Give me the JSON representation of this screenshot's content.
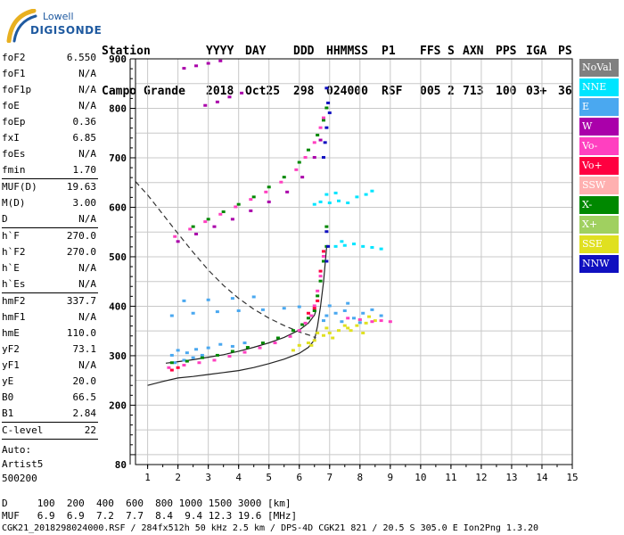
{
  "logo": {
    "line1": "Lowell",
    "line2": "DIGISONDE"
  },
  "header": {
    "col_station": [
      "Station",
      "Campo Grande"
    ],
    "col_yyyy": [
      "YYYY",
      "2018"
    ],
    "col_day": [
      "DAY",
      "Oct25"
    ],
    "col_ddd": [
      "DDD",
      "298"
    ],
    "col_hhmmss": [
      "HHMMSS",
      "024000"
    ],
    "col_p1": [
      "P1",
      "RSF"
    ],
    "col_ffs": [
      "FFS",
      "005"
    ],
    "col_s": [
      "S",
      "2"
    ],
    "col_axn": [
      "AXN",
      "713"
    ],
    "col_pps": [
      "PPS",
      "100"
    ],
    "col_iga": [
      "IGA",
      "03+"
    ],
    "col_ps": [
      "PS",
      "36"
    ]
  },
  "params": {
    "group1": [
      {
        "label": "foF2",
        "value": "6.550"
      },
      {
        "label": "foF1",
        "value": "N/A"
      },
      {
        "label": "foF1p",
        "value": "N/A"
      },
      {
        "label": "foE",
        "value": "N/A"
      },
      {
        "label": "foEp",
        "value": "0.36"
      },
      {
        "label": "fxI",
        "value": "6.85"
      },
      {
        "label": "foEs",
        "value": "N/A"
      },
      {
        "label": "fmin",
        "value": "1.70"
      }
    ],
    "group2": [
      {
        "label": "MUF(D)",
        "value": "19.63"
      },
      {
        "label": "M(D)",
        "value": "3.00"
      },
      {
        "label": "D",
        "value": "N/A"
      }
    ],
    "group3": [
      {
        "label": "h`F",
        "value": "270.0"
      },
      {
        "label": "h`F2",
        "value": "270.0"
      },
      {
        "label": "h`E",
        "value": "N/A"
      },
      {
        "label": "h`Es",
        "value": "N/A"
      }
    ],
    "group4": [
      {
        "label": "hmF2",
        "value": "337.7"
      },
      {
        "label": "hmF1",
        "value": "N/A"
      },
      {
        "label": "hmE",
        "value": "110.0"
      },
      {
        "label": "yF2",
        "value": "73.1"
      },
      {
        "label": "yF1",
        "value": "N/A"
      },
      {
        "label": "yE",
        "value": "20.0"
      },
      {
        "label": "B0",
        "value": "66.5"
      },
      {
        "label": "B1",
        "value": "2.84"
      }
    ],
    "group5": [
      {
        "label": "C-level",
        "value": "22"
      }
    ],
    "auto": [
      "Auto:",
      "Artist5",
      "500200"
    ]
  },
  "legend": [
    {
      "label": "NoVal",
      "color": "#808080"
    },
    {
      "label": "NNE",
      "color": "#00e5ff"
    },
    {
      "label": "E",
      "color": "#4aa8f0"
    },
    {
      "label": "W",
      "color": "#aa00aa"
    },
    {
      "label": "Vo-",
      "color": "#ff40c0"
    },
    {
      "label": "Vo+",
      "color": "#ff0040"
    },
    {
      "label": "SSW",
      "color": "#ffb0b0"
    },
    {
      "label": "X-",
      "color": "#008800"
    },
    {
      "label": "X+",
      "color": "#a0d060"
    },
    {
      "label": "SSE",
      "color": "#e0e020"
    },
    {
      "label": "NNW",
      "color": "#1010c0"
    }
  ],
  "bottom": {
    "d_line": "D     100  200  400  600  800 1000 1500 3000 [km]",
    "muf_line": "MUF   6.9  6.9  7.2  7.7  8.4  9.4 12.3 19.6 [MHz]",
    "footer": "CGK21_2018298024000.RSF / 284fx512h 50 kHz 2.5 km / DPS-4D CGK21 821 / 20.5 S 305.0 E Ion2Png 1.3.20"
  },
  "chart_data": {
    "type": "scatter",
    "title": "",
    "xlabel": "",
    "ylabel": "",
    "xlim": [
      0.6,
      15
    ],
    "ylim": [
      80,
      900
    ],
    "x_ticks": [
      1,
      2,
      3,
      4,
      5,
      6,
      7,
      8,
      9,
      10,
      11,
      12,
      13,
      14,
      15
    ],
    "y_ticks": [
      80,
      200,
      300,
      400,
      500,
      600,
      700,
      800,
      900
    ],
    "series": [
      {
        "name": "SSE",
        "color": "#e0e020",
        "points": [
          [
            5.8,
            310
          ],
          [
            6.0,
            320
          ],
          [
            6.3,
            325
          ],
          [
            6.5,
            330
          ],
          [
            6.8,
            340
          ],
          [
            7.0,
            345
          ],
          [
            7.3,
            350
          ],
          [
            7.6,
            355
          ],
          [
            7.9,
            360
          ],
          [
            8.2,
            365
          ],
          [
            8.5,
            370
          ],
          [
            6.6,
            345
          ],
          [
            7.1,
            335
          ],
          [
            7.5,
            360
          ],
          [
            8.0,
            372
          ],
          [
            8.3,
            378
          ],
          [
            6.9,
            355
          ],
          [
            7.7,
            350
          ],
          [
            8.1,
            345
          ],
          [
            6.4,
            320
          ]
        ]
      },
      {
        "name": "E",
        "color": "#4aa8f0",
        "points": [
          [
            1.8,
            300
          ],
          [
            2.0,
            310
          ],
          [
            2.3,
            305
          ],
          [
            2.6,
            312
          ],
          [
            3.0,
            315
          ],
          [
            3.4,
            322
          ],
          [
            3.8,
            318
          ],
          [
            4.2,
            325
          ],
          [
            1.9,
            285
          ],
          [
            2.2,
            290
          ],
          [
            2.5,
            295
          ],
          [
            2.8,
            300
          ],
          [
            1.8,
            380
          ],
          [
            2.5,
            385
          ],
          [
            3.3,
            388
          ],
          [
            4.0,
            390
          ],
          [
            4.8,
            392
          ],
          [
            5.5,
            395
          ],
          [
            6.0,
            398
          ],
          [
            2.2,
            410
          ],
          [
            3.0,
            412
          ],
          [
            3.8,
            415
          ],
          [
            4.5,
            418
          ],
          [
            6.9,
            380
          ],
          [
            7.2,
            385
          ],
          [
            7.5,
            390
          ],
          [
            7.8,
            375
          ],
          [
            8.1,
            385
          ],
          [
            8.4,
            392
          ],
          [
            8.7,
            380
          ],
          [
            6.8,
            370
          ],
          [
            7.4,
            368
          ],
          [
            8.0,
            366
          ],
          [
            7.0,
            400
          ],
          [
            7.6,
            405
          ]
        ]
      },
      {
        "name": "NNE",
        "color": "#00e5ff",
        "points": [
          [
            6.5,
            605
          ],
          [
            6.7,
            610
          ],
          [
            7.0,
            608
          ],
          [
            7.3,
            612
          ],
          [
            7.6,
            608
          ],
          [
            6.9,
            625
          ],
          [
            7.2,
            628
          ],
          [
            7.9,
            620
          ],
          [
            8.2,
            625
          ],
          [
            8.4,
            632
          ],
          [
            7.2,
            520
          ],
          [
            7.5,
            522
          ],
          [
            7.8,
            525
          ],
          [
            8.1,
            520
          ],
          [
            8.4,
            518
          ],
          [
            8.7,
            515
          ],
          [
            7.4,
            530
          ]
        ]
      },
      {
        "name": "X-",
        "color": "#008800",
        "points": [
          [
            1.8,
            285
          ],
          [
            2.3,
            288
          ],
          [
            2.8,
            295
          ],
          [
            3.3,
            300
          ],
          [
            3.8,
            308
          ],
          [
            4.3,
            316
          ],
          [
            4.8,
            325
          ],
          [
            5.3,
            335
          ],
          [
            5.8,
            350
          ],
          [
            6.1,
            362
          ],
          [
            6.3,
            375
          ],
          [
            6.5,
            390
          ],
          [
            6.6,
            420
          ],
          [
            6.7,
            450
          ],
          [
            6.8,
            490
          ],
          [
            6.9,
            520
          ],
          [
            6.9,
            560
          ],
          [
            2.5,
            560
          ],
          [
            3.0,
            575
          ],
          [
            3.5,
            590
          ],
          [
            4.0,
            605
          ],
          [
            4.5,
            620
          ],
          [
            5.0,
            640
          ],
          [
            5.5,
            660
          ],
          [
            6.0,
            690
          ],
          [
            6.3,
            715
          ],
          [
            6.6,
            745
          ],
          [
            6.8,
            775
          ],
          [
            6.9,
            800
          ]
        ]
      },
      {
        "name": "Vo-",
        "color": "#ff40c0",
        "points": [
          [
            1.7,
            275
          ],
          [
            2.2,
            280
          ],
          [
            2.7,
            285
          ],
          [
            3.2,
            290
          ],
          [
            3.7,
            298
          ],
          [
            4.2,
            306
          ],
          [
            4.7,
            315
          ],
          [
            5.2,
            325
          ],
          [
            5.7,
            338
          ],
          [
            6.0,
            350
          ],
          [
            6.2,
            365
          ],
          [
            6.4,
            380
          ],
          [
            6.5,
            400
          ],
          [
            6.6,
            430
          ],
          [
            6.7,
            460
          ],
          [
            6.8,
            500
          ],
          [
            1.9,
            540
          ],
          [
            2.4,
            555
          ],
          [
            2.9,
            570
          ],
          [
            3.4,
            585
          ],
          [
            3.9,
            600
          ],
          [
            4.4,
            615
          ],
          [
            4.9,
            630
          ],
          [
            5.4,
            650
          ],
          [
            5.9,
            675
          ],
          [
            6.2,
            700
          ],
          [
            6.5,
            730
          ],
          [
            6.7,
            760
          ],
          [
            6.8,
            780
          ],
          [
            7.6,
            375
          ],
          [
            8.0,
            372
          ],
          [
            8.4,
            368
          ],
          [
            8.7,
            370
          ],
          [
            9.0,
            368
          ]
        ]
      },
      {
        "name": "W",
        "color": "#aa00aa",
        "points": [
          [
            2.0,
            530
          ],
          [
            2.6,
            545
          ],
          [
            3.2,
            560
          ],
          [
            3.8,
            575
          ],
          [
            4.4,
            592
          ],
          [
            5.0,
            610
          ],
          [
            5.6,
            630
          ],
          [
            6.1,
            660
          ],
          [
            6.5,
            700
          ],
          [
            6.7,
            735
          ],
          [
            2.2,
            880
          ],
          [
            2.6,
            885
          ],
          [
            3.0,
            890
          ],
          [
            3.4,
            895
          ],
          [
            2.9,
            805
          ],
          [
            3.3,
            812
          ],
          [
            3.7,
            822
          ],
          [
            4.1,
            830
          ]
        ]
      },
      {
        "name": "NNW",
        "color": "#1010c0",
        "points": [
          [
            6.9,
            840
          ],
          [
            6.95,
            810
          ],
          [
            7.0,
            790
          ],
          [
            6.9,
            760
          ],
          [
            6.85,
            730
          ],
          [
            6.8,
            700
          ],
          [
            6.9,
            550
          ],
          [
            6.95,
            520
          ],
          [
            6.9,
            490
          ]
        ]
      },
      {
        "name": "Vo+",
        "color": "#ff0040",
        "points": [
          [
            6.3,
            385
          ],
          [
            6.5,
            395
          ],
          [
            6.6,
            410
          ],
          [
            1.8,
            270
          ],
          [
            2.0,
            275
          ],
          [
            6.7,
            470
          ],
          [
            6.8,
            510
          ]
        ]
      }
    ],
    "curves": [
      {
        "name": "",
        "style": "solid",
        "color": "#222222",
        "points": [
          [
            1.0,
            240
          ],
          [
            1.5,
            248
          ],
          [
            2.0,
            255
          ],
          [
            2.5,
            258
          ],
          [
            3.0,
            262
          ],
          [
            3.5,
            266
          ],
          [
            4.0,
            270
          ],
          [
            4.5,
            276
          ],
          [
            5.0,
            284
          ],
          [
            5.5,
            293
          ],
          [
            6.0,
            305
          ],
          [
            6.3,
            317
          ],
          [
            6.5,
            332
          ],
          [
            6.6,
            360
          ],
          [
            6.7,
            400
          ],
          [
            6.8,
            450
          ],
          [
            6.85,
            485
          ],
          [
            6.9,
            520
          ]
        ]
      },
      {
        "name": "",
        "style": "solid",
        "color": "#222222",
        "points": [
          [
            1.6,
            285
          ],
          [
            2.0,
            288
          ],
          [
            2.5,
            292
          ],
          [
            3.0,
            297
          ],
          [
            3.5,
            302
          ],
          [
            4.0,
            309
          ],
          [
            4.5,
            317
          ],
          [
            5.0,
            326
          ],
          [
            5.5,
            337
          ],
          [
            6.0,
            352
          ],
          [
            6.3,
            366
          ],
          [
            6.5,
            382
          ],
          [
            6.55,
            392
          ]
        ]
      },
      {
        "name": "",
        "style": "dashed",
        "color": "#333333",
        "points": [
          [
            0.6,
            652
          ],
          [
            1.0,
            625
          ],
          [
            1.5,
            586
          ],
          [
            2.0,
            547
          ],
          [
            2.5,
            509
          ],
          [
            3.0,
            473
          ],
          [
            3.5,
            442
          ],
          [
            4.0,
            416
          ],
          [
            4.5,
            394
          ],
          [
            5.0,
            376
          ],
          [
            5.5,
            361
          ],
          [
            6.0,
            348
          ],
          [
            6.4,
            340
          ],
          [
            6.55,
            336
          ]
        ]
      }
    ]
  }
}
